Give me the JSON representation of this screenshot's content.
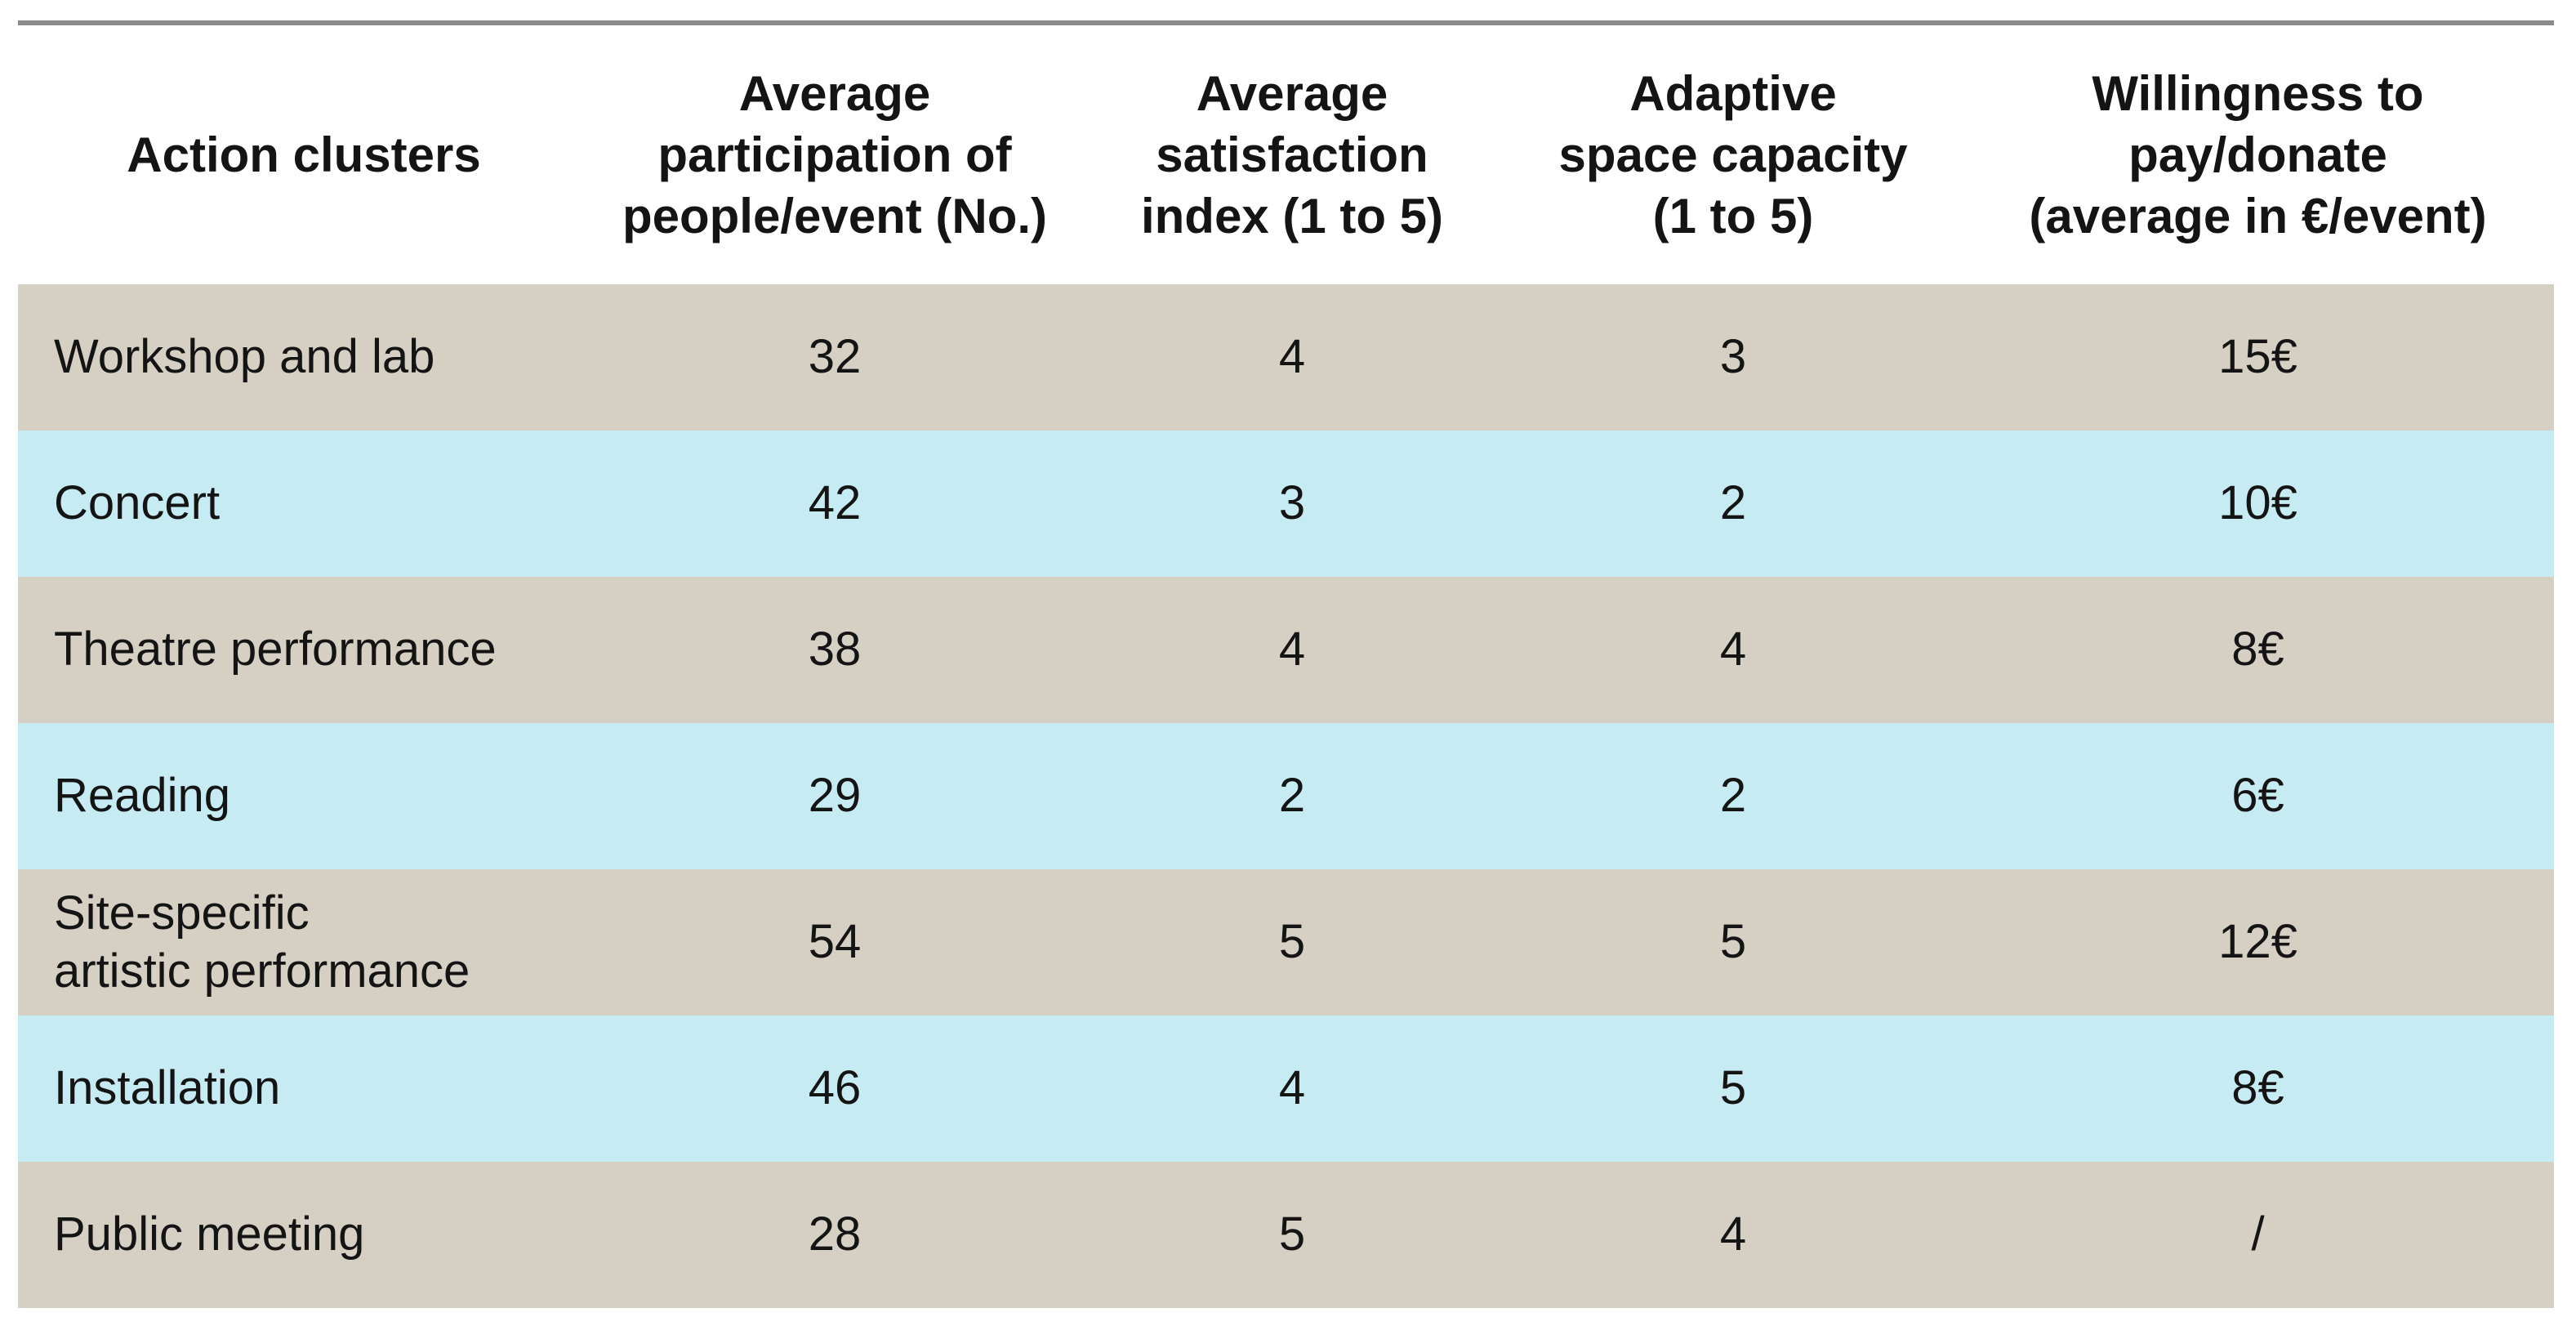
{
  "chart_data": {
    "type": "table",
    "title": "",
    "columns": [
      "Action clusters",
      "Average participation of people/event (No.)",
      "Average satisfaction index (1 to 5)",
      "Adaptive space capacity (1 to 5)",
      "Willingness to pay/donate (average in €/event)"
    ],
    "header_display": [
      "Action clusters",
      "Average\nparticipation of\npeople/event (No.)",
      "Average\nsatisfaction\nindex (1 to 5)",
      "Adaptive\nspace capacity\n(1 to 5)",
      "Willingness to\npay/donate\n(average in €/event)"
    ],
    "rows": [
      [
        "Workshop and lab",
        "32",
        "4",
        "3",
        "15€"
      ],
      [
        "Concert",
        "42",
        "3",
        "2",
        "10€"
      ],
      [
        "Theatre performance",
        "38",
        "4",
        "4",
        "8€"
      ],
      [
        "Reading",
        "29",
        "2",
        "2",
        "6€"
      ],
      [
        "Site-specific\nartistic performance",
        "54",
        "5",
        "5",
        "12€"
      ],
      [
        "Installation",
        "46",
        "4",
        "5",
        "8€"
      ],
      [
        "Public meeting",
        "28",
        "5",
        "4",
        "/"
      ]
    ],
    "values_numeric": {
      "participation_no": [
        32,
        42,
        38,
        29,
        54,
        46,
        28
      ],
      "satisfaction_index": [
        4,
        3,
        4,
        2,
        5,
        4,
        5
      ],
      "adaptive_space_capacity": [
        3,
        2,
        4,
        2,
        5,
        5,
        4
      ],
      "willingness_eur_per_event": [
        15,
        10,
        8,
        6,
        12,
        8,
        null
      ]
    },
    "grid": false,
    "legend_position": "none"
  },
  "colors": {
    "row_tan": "#d5cfc4",
    "row_blue": "#c6ebf2",
    "top_rule": "#8a8a8a",
    "text": "#141414",
    "background": "#ffffff"
  }
}
